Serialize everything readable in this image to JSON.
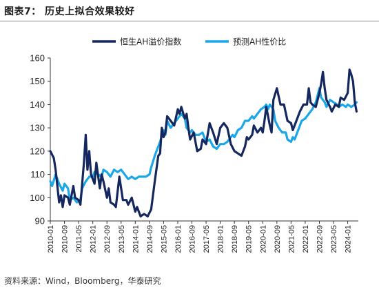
{
  "figure": {
    "title": "图表7：  历史上拟合效果较好",
    "source": "资料来源：Wind，Bloomberg，华泰研究"
  },
  "chart_data": {
    "type": "line",
    "ylim": [
      90,
      160
    ],
    "yticks": [
      90,
      100,
      110,
      120,
      130,
      140,
      150,
      160
    ],
    "xlim": [
      "2010-01",
      "2024-07"
    ],
    "x_tick_labels": [
      "2010-01",
      "2010-09",
      "2011-05",
      "2012-01",
      "2012-09",
      "2013-05",
      "2014-01",
      "2014-09",
      "2015-05",
      "2016-01",
      "2016-09",
      "2017-05",
      "2018-01",
      "2018-09",
      "2019-05",
      "2020-01",
      "2020-09",
      "2021-05",
      "2022-01",
      "2022-09",
      "2023-05",
      "2024-01"
    ],
    "legend": "top",
    "grid": false,
    "colors": {
      "series1": "#14275e",
      "series2": "#1aa7e8"
    },
    "series": [
      {
        "name": "恒生AH溢价指数",
        "points": [
          [
            "2010-01",
            120
          ],
          [
            "2010-03",
            117
          ],
          [
            "2010-04",
            112
          ],
          [
            "2010-06",
            98
          ],
          [
            "2010-07",
            101
          ],
          [
            "2010-08",
            96
          ],
          [
            "2010-09",
            101
          ],
          [
            "2010-11",
            100
          ],
          [
            "2010-12",
            97
          ],
          [
            "2011-02",
            105
          ],
          [
            "2011-03",
            100
          ],
          [
            "2011-05",
            99
          ],
          [
            "2011-06",
            97
          ],
          [
            "2011-08",
            115
          ],
          [
            "2011-09",
            127
          ],
          [
            "2011-10",
            112
          ],
          [
            "2011-11",
            120
          ],
          [
            "2011-12",
            110
          ],
          [
            "2012-02",
            106
          ],
          [
            "2012-03",
            115
          ],
          [
            "2012-05",
            104
          ],
          [
            "2012-06",
            110
          ],
          [
            "2012-07",
            107
          ],
          [
            "2012-09",
            100
          ],
          [
            "2012-10",
            104
          ],
          [
            "2012-11",
            98
          ],
          [
            "2013-01",
            97
          ],
          [
            "2013-02",
            96
          ],
          [
            "2013-04",
            109
          ],
          [
            "2013-05",
            104
          ],
          [
            "2013-06",
            99
          ],
          [
            "2013-08",
            99
          ],
          [
            "2013-09",
            97
          ],
          [
            "2013-11",
            100
          ],
          [
            "2014-01",
            94
          ],
          [
            "2014-02",
            96
          ],
          [
            "2014-04",
            92
          ],
          [
            "2014-06",
            93
          ],
          [
            "2014-08",
            92
          ],
          [
            "2014-10",
            95
          ],
          [
            "2014-12",
            107
          ],
          [
            "2015-02",
            118
          ],
          [
            "2015-03",
            119
          ],
          [
            "2015-04",
            130
          ],
          [
            "2015-05",
            126
          ],
          [
            "2015-06",
            128
          ],
          [
            "2015-07",
            135
          ],
          [
            "2015-09",
            133
          ],
          [
            "2015-11",
            131
          ],
          [
            "2016-01",
            138
          ],
          [
            "2016-02",
            136
          ],
          [
            "2016-03",
            139
          ],
          [
            "2016-05",
            134
          ],
          [
            "2016-06",
            136
          ],
          [
            "2016-07",
            130
          ],
          [
            "2016-08",
            125
          ],
          [
            "2016-10",
            128
          ],
          [
            "2016-12",
            120
          ],
          [
            "2017-02",
            121
          ],
          [
            "2017-03",
            125
          ],
          [
            "2017-05",
            123
          ],
          [
            "2017-07",
            132
          ],
          [
            "2017-09",
            128
          ],
          [
            "2017-11",
            123
          ],
          [
            "2018-01",
            130
          ],
          [
            "2018-03",
            132
          ],
          [
            "2018-05",
            130
          ],
          [
            "2018-07",
            123
          ],
          [
            "2018-09",
            120
          ],
          [
            "2018-11",
            119
          ],
          [
            "2019-01",
            118
          ],
          [
            "2019-03",
            122
          ],
          [
            "2019-04",
            126
          ],
          [
            "2019-05",
            125
          ],
          [
            "2019-07",
            127
          ],
          [
            "2019-08",
            131
          ],
          [
            "2019-10",
            128
          ],
          [
            "2019-12",
            130
          ],
          [
            "2020-01",
            128
          ],
          [
            "2020-02",
            133
          ],
          [
            "2020-03",
            139
          ],
          [
            "2020-05",
            131
          ],
          [
            "2020-06",
            128
          ],
          [
            "2020-07",
            142
          ],
          [
            "2020-09",
            147
          ],
          [
            "2020-11",
            140
          ],
          [
            "2021-01",
            140
          ],
          [
            "2021-03",
            133
          ],
          [
            "2021-05",
            132
          ],
          [
            "2021-06",
            129
          ],
          [
            "2021-08",
            133
          ],
          [
            "2021-10",
            137
          ],
          [
            "2021-12",
            140
          ],
          [
            "2022-02",
            140
          ],
          [
            "2022-03",
            147
          ],
          [
            "2022-04",
            141
          ],
          [
            "2022-05",
            140
          ],
          [
            "2022-07",
            139
          ],
          [
            "2022-09",
            145
          ],
          [
            "2022-10",
            149
          ],
          [
            "2022-11",
            154
          ],
          [
            "2022-12",
            147
          ],
          [
            "2023-01",
            142
          ],
          [
            "2023-03",
            139
          ],
          [
            "2023-04",
            137
          ],
          [
            "2023-06",
            140
          ],
          [
            "2023-08",
            139
          ],
          [
            "2023-09",
            143
          ],
          [
            "2023-11",
            142
          ],
          [
            "2024-01",
            145
          ],
          [
            "2024-02",
            155
          ],
          [
            "2024-03",
            153
          ],
          [
            "2024-04",
            150
          ],
          [
            "2024-05",
            141
          ],
          [
            "2024-06",
            137
          ]
        ]
      },
      {
        "name": "预测AH性价比",
        "points": [
          [
            "2010-01",
            107
          ],
          [
            "2010-02",
            105
          ],
          [
            "2010-04",
            110
          ],
          [
            "2010-05",
            108
          ],
          [
            "2010-06",
            106
          ],
          [
            "2010-08",
            103
          ],
          [
            "2010-09",
            106
          ],
          [
            "2010-11",
            104
          ],
          [
            "2010-12",
            99
          ],
          [
            "2011-02",
            100
          ],
          [
            "2011-04",
            98
          ],
          [
            "2011-06",
            99
          ],
          [
            "2011-07",
            104
          ],
          [
            "2011-09",
            107
          ],
          [
            "2011-11",
            109
          ],
          [
            "2012-01",
            109
          ],
          [
            "2012-02",
            111
          ],
          [
            "2012-04",
            110
          ],
          [
            "2012-06",
            109
          ],
          [
            "2012-07",
            112
          ],
          [
            "2012-09",
            111
          ],
          [
            "2012-11",
            109
          ],
          [
            "2013-01",
            112
          ],
          [
            "2013-03",
            111
          ],
          [
            "2013-05",
            112
          ],
          [
            "2013-07",
            110
          ],
          [
            "2013-09",
            108
          ],
          [
            "2013-11",
            109
          ],
          [
            "2014-01",
            108
          ],
          [
            "2014-03",
            109
          ],
          [
            "2014-05",
            109
          ],
          [
            "2014-07",
            109
          ],
          [
            "2014-09",
            110
          ],
          [
            "2014-10",
            113
          ],
          [
            "2014-12",
            118
          ],
          [
            "2015-01",
            120
          ],
          [
            "2015-03",
            124
          ],
          [
            "2015-05",
            129
          ],
          [
            "2015-06",
            127
          ],
          [
            "2015-07",
            133
          ],
          [
            "2015-09",
            130
          ],
          [
            "2015-11",
            132
          ],
          [
            "2016-01",
            134
          ],
          [
            "2016-03",
            136
          ],
          [
            "2016-05",
            134
          ],
          [
            "2016-06",
            130
          ],
          [
            "2016-08",
            128
          ],
          [
            "2016-09",
            129
          ],
          [
            "2016-11",
            127
          ],
          [
            "2017-01",
            127
          ],
          [
            "2017-03",
            128
          ],
          [
            "2017-05",
            124
          ],
          [
            "2017-07",
            125
          ],
          [
            "2017-09",
            122
          ],
          [
            "2017-11",
            121
          ],
          [
            "2018-01",
            123
          ],
          [
            "2018-03",
            123
          ],
          [
            "2018-05",
            124
          ],
          [
            "2018-07",
            126
          ],
          [
            "2018-08",
            127
          ],
          [
            "2018-09",
            126
          ],
          [
            "2018-11",
            129
          ],
          [
            "2019-01",
            130
          ],
          [
            "2019-03",
            133
          ],
          [
            "2019-05",
            133
          ],
          [
            "2019-07",
            135
          ],
          [
            "2019-08",
            134
          ],
          [
            "2019-10",
            136
          ],
          [
            "2019-12",
            138
          ],
          [
            "2020-02",
            139
          ],
          [
            "2020-03",
            140
          ],
          [
            "2020-04",
            138
          ],
          [
            "2020-05",
            140
          ],
          [
            "2020-07",
            138
          ],
          [
            "2020-08",
            133
          ],
          [
            "2020-10",
            130
          ],
          [
            "2020-12",
            128
          ],
          [
            "2021-02",
            128
          ],
          [
            "2021-03",
            125
          ],
          [
            "2021-05",
            124
          ],
          [
            "2021-06",
            126
          ],
          [
            "2021-07",
            125
          ],
          [
            "2021-09",
            129
          ],
          [
            "2021-11",
            133
          ],
          [
            "2022-01",
            134
          ],
          [
            "2022-03",
            136
          ],
          [
            "2022-05",
            138
          ],
          [
            "2022-07",
            141
          ],
          [
            "2022-08",
            144
          ],
          [
            "2022-09",
            147
          ],
          [
            "2022-10",
            143
          ],
          [
            "2022-12",
            141
          ],
          [
            "2023-01",
            139
          ],
          [
            "2023-03",
            142
          ],
          [
            "2023-05",
            141
          ],
          [
            "2023-07",
            140
          ],
          [
            "2023-08",
            139
          ],
          [
            "2023-10",
            140
          ],
          [
            "2023-12",
            139
          ],
          [
            "2024-01",
            140
          ],
          [
            "2024-03",
            139
          ],
          [
            "2024-05",
            140
          ],
          [
            "2024-06",
            141
          ]
        ]
      }
    ]
  }
}
